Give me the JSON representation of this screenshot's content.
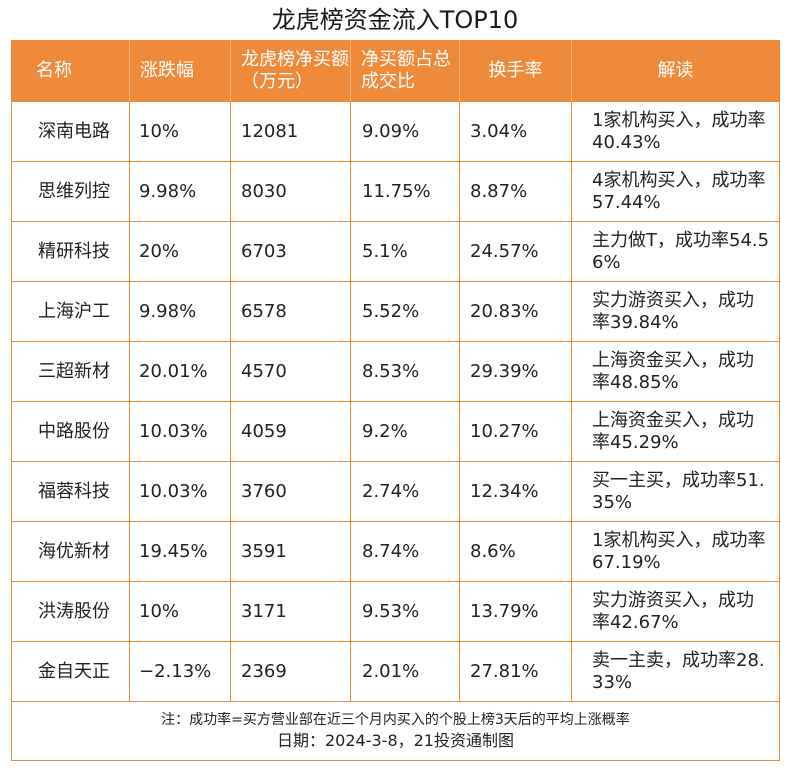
{
  "title": "龙虎榜资金流入TOP10",
  "header": {
    "name": "名称",
    "change": "涨跌幅",
    "net_buy": "龙虎榜净买额（万元）",
    "ratio": "净买额占总成交比",
    "turnover": "换手率",
    "interpret": "解读"
  },
  "rows": [
    {
      "name": "深南电路",
      "change": "10%",
      "net_buy": "12081",
      "ratio": "9.09%",
      "turnover": "3.04%",
      "interpret": "1家机构买入，成功率40.43%"
    },
    {
      "name": "思维列控",
      "change": "9.98%",
      "net_buy": "8030",
      "ratio": "11.75%",
      "turnover": "8.87%",
      "interpret": "4家机构买入，成功率57.44%"
    },
    {
      "name": "精研科技",
      "change": "20%",
      "net_buy": "6703",
      "ratio": "5.1%",
      "turnover": "24.57%",
      "interpret": "主力做T，成功率54.56%"
    },
    {
      "name": "上海沪工",
      "change": "9.98%",
      "net_buy": "6578",
      "ratio": "5.52%",
      "turnover": "20.83%",
      "interpret": "实力游资买入，成功率39.84%"
    },
    {
      "name": "三超新材",
      "change": "20.01%",
      "net_buy": "4570",
      "ratio": "8.53%",
      "turnover": "29.39%",
      "interpret": "上海资金买入，成功率48.85%"
    },
    {
      "name": "中路股份",
      "change": "10.03%",
      "net_buy": "4059",
      "ratio": "9.2%",
      "turnover": "10.27%",
      "interpret": "上海资金买入，成功率45.29%"
    },
    {
      "name": "福蓉科技",
      "change": "10.03%",
      "net_buy": "3760",
      "ratio": "2.74%",
      "turnover": "12.34%",
      "interpret": "买一主买，成功率51.35%"
    },
    {
      "name": "海优新材",
      "change": "19.45%",
      "net_buy": "3591",
      "ratio": "8.74%",
      "turnover": "8.6%",
      "interpret": "1家机构买入，成功率67.19%"
    },
    {
      "name": "洪涛股份",
      "change": "10%",
      "net_buy": "3171",
      "ratio": "9.53%",
      "turnover": "13.79%",
      "interpret": "实力游资买入，成功率42.67%"
    },
    {
      "name": "金自天正",
      "change": "−2.13%",
      "net_buy": "2369",
      "ratio": "2.01%",
      "turnover": "27.81%",
      "interpret": "卖一主卖，成功率28.33%"
    }
  ],
  "footer": {
    "note": "注：成功率=买方营业部在近三个月内买入的个股上榜3天后的平均上涨概率",
    "date": "日期：2024-3-8，21投资通制图"
  },
  "colors": {
    "accent": "#ee8a3a",
    "header_text": "#ffffff"
  }
}
